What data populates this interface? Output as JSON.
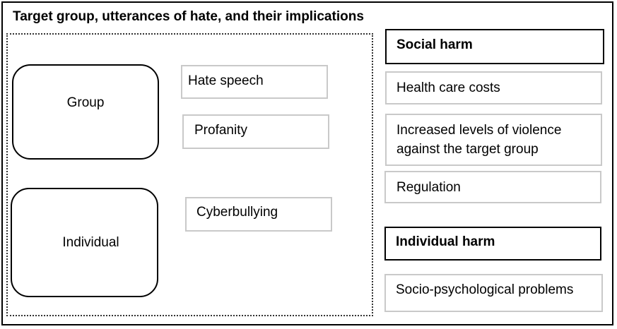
{
  "title": "Target group, utterances of hate, and their implications",
  "targets": {
    "group": "Group",
    "individual": "Individual"
  },
  "utterances": {
    "hate_speech": "Hate speech",
    "profanity": "Profanity",
    "cyberbullying": "Cyberbullying"
  },
  "social_harm": {
    "heading": "Social harm",
    "items": [
      "Health care costs",
      "Increased levels of violence against the target group",
      "Regulation"
    ]
  },
  "individual_harm": {
    "heading": "Individual harm",
    "items": [
      "Socio-psychological problems"
    ]
  }
}
